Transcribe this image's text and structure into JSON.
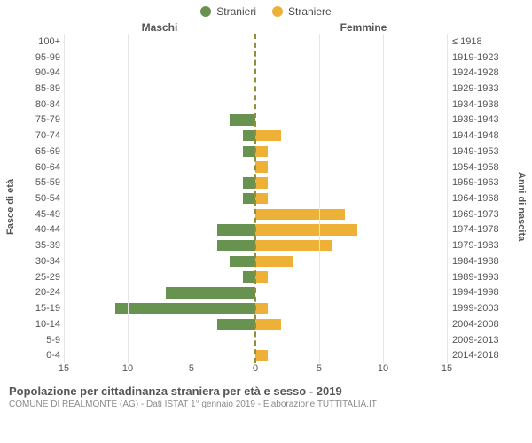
{
  "legend": {
    "male": "Stranieri",
    "female": "Straniere"
  },
  "headers": {
    "left": "Maschi",
    "right": "Femmine"
  },
  "axis_labels": {
    "left": "Fasce di età",
    "right": "Anni di nascita"
  },
  "colors": {
    "male": "#67924f",
    "female": "#edb137",
    "grid": "#e6e6e6",
    "center": "#90903a",
    "background": "#ffffff"
  },
  "chart": {
    "type": "population-pyramid",
    "xmax": 15,
    "xticks": [
      0,
      5,
      10,
      15
    ],
    "bar_height_ratio": 0.7,
    "rows": [
      {
        "age": "100+",
        "year": "≤ 1918",
        "m": 0,
        "f": 0
      },
      {
        "age": "95-99",
        "year": "1919-1923",
        "m": 0,
        "f": 0
      },
      {
        "age": "90-94",
        "year": "1924-1928",
        "m": 0,
        "f": 0
      },
      {
        "age": "85-89",
        "year": "1929-1933",
        "m": 0,
        "f": 0
      },
      {
        "age": "80-84",
        "year": "1934-1938",
        "m": 0,
        "f": 0
      },
      {
        "age": "75-79",
        "year": "1939-1943",
        "m": 2,
        "f": 0
      },
      {
        "age": "70-74",
        "year": "1944-1948",
        "m": 1,
        "f": 2
      },
      {
        "age": "65-69",
        "year": "1949-1953",
        "m": 1,
        "f": 1
      },
      {
        "age": "60-64",
        "year": "1954-1958",
        "m": 0,
        "f": 1
      },
      {
        "age": "55-59",
        "year": "1959-1963",
        "m": 1,
        "f": 1
      },
      {
        "age": "50-54",
        "year": "1964-1968",
        "m": 1,
        "f": 1
      },
      {
        "age": "45-49",
        "year": "1969-1973",
        "m": 0,
        "f": 7
      },
      {
        "age": "40-44",
        "year": "1974-1978",
        "m": 3,
        "f": 8
      },
      {
        "age": "35-39",
        "year": "1979-1983",
        "m": 3,
        "f": 6
      },
      {
        "age": "30-34",
        "year": "1984-1988",
        "m": 2,
        "f": 3
      },
      {
        "age": "25-29",
        "year": "1989-1993",
        "m": 1,
        "f": 1
      },
      {
        "age": "20-24",
        "year": "1994-1998",
        "m": 7,
        "f": 0
      },
      {
        "age": "15-19",
        "year": "1999-2003",
        "m": 11,
        "f": 1
      },
      {
        "age": "10-14",
        "year": "2004-2008",
        "m": 3,
        "f": 2
      },
      {
        "age": "5-9",
        "year": "2009-2013",
        "m": 0,
        "f": 0
      },
      {
        "age": "0-4",
        "year": "2014-2018",
        "m": 0,
        "f": 1
      }
    ]
  },
  "footer": {
    "title": "Popolazione per cittadinanza straniera per età e sesso - 2019",
    "subtitle": "COMUNE DI REALMONTE (AG) - Dati ISTAT 1° gennaio 2019 - Elaborazione TUTTITALIA.IT"
  }
}
